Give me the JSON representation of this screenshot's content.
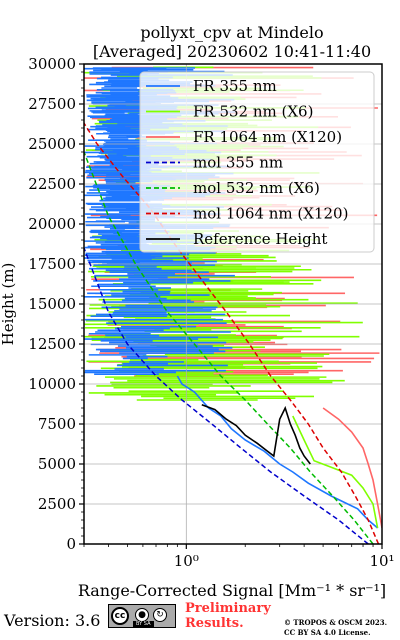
{
  "chart_data": {
    "type": "line",
    "title_line1": "pollyxt_cpv at Mindelo",
    "title_line2": "[Averaged] 20230602 10:41-11:40",
    "ylabel": "Height (m)",
    "xlabel": "Range-Corrected Signal [Mm⁻¹ * sr⁻¹]",
    "xscale": "log",
    "xlim": [
      0.3,
      10
    ],
    "ylim": [
      0,
      30000
    ],
    "xticks": [
      1,
      10
    ],
    "xtick_labels": [
      "10⁰",
      "10¹"
    ],
    "yticks": [
      0,
      2500,
      5000,
      7500,
      10000,
      12500,
      15000,
      17500,
      20000,
      22500,
      25000,
      27500,
      30000
    ],
    "ytick_labels": [
      "0",
      "2500",
      "5000",
      "7500",
      "10000",
      "12500",
      "15000",
      "17500",
      "20000",
      "22500",
      "25000",
      "27500",
      "30000"
    ],
    "grid": true,
    "legend_position": "top-right",
    "colors": {
      "fr355": "#1f77ff",
      "fr532": "#80ff00",
      "fr1064": "#ff6666",
      "mol355": "#0000cc",
      "mol532": "#00bb00",
      "mol1064": "#dd0000",
      "reference": "#000000"
    },
    "legend": [
      {
        "label": "FR 355 nm",
        "color": "#1f77ff",
        "style": "solid"
      },
      {
        "label": "FR 532 nm (X6)",
        "color": "#80ff00",
        "style": "solid"
      },
      {
        "label": "FR 1064 nm (X120)",
        "color": "#ff6666",
        "style": "solid"
      },
      {
        "label": "mol 355 nm",
        "color": "#0000cc",
        "style": "dashed"
      },
      {
        "label": "mol 532 nm (X6)",
        "color": "#00bb00",
        "style": "dashed"
      },
      {
        "label": "mol 1064 nm (X120)",
        "color": "#dd0000",
        "style": "dashed"
      },
      {
        "label": "Reference Height",
        "color": "#000000",
        "style": "solid"
      }
    ],
    "series": [
      {
        "name": "FR 355 nm",
        "x": [
          9.5,
          8.5,
          7.5,
          5.5,
          4.2,
          3.5,
          3.0,
          2.5,
          2.0,
          1.7,
          1.5,
          1.3,
          1.1,
          0.95,
          0.9
        ],
        "y": [
          1000,
          1500,
          2200,
          3000,
          3800,
          4500,
          5000,
          5800,
          6500,
          7200,
          8000,
          8500,
          9500,
          10000,
          10500
        ]
      },
      {
        "name": "FR 532 nm (X6)",
        "x": [
          9.5,
          9.0,
          8.0,
          7.0,
          5.5,
          4.5,
          4.0,
          3.5
        ],
        "y": [
          1000,
          2500,
          3500,
          4300,
          4800,
          5200,
          6500,
          8000
        ]
      },
      {
        "name": "FR 1064 nm (X120)",
        "x": [
          10.0,
          9.5,
          9.0,
          8.5,
          8.0,
          7.0,
          6.0,
          5.0
        ],
        "y": [
          1000,
          2500,
          4000,
          5000,
          6000,
          7000,
          7800,
          8500
        ]
      },
      {
        "name": "mol 355 nm",
        "x": [
          8.5,
          6.0,
          4.0,
          2.7,
          1.9,
          1.35,
          0.95,
          0.7,
          0.5,
          0.4,
          0.3
        ],
        "y": [
          0,
          1500,
          3000,
          4500,
          6000,
          7500,
          9000,
          10500,
          12500,
          14500,
          18500
        ]
      },
      {
        "name": "mol 532 nm (X6)",
        "x": [
          9.0,
          7.2,
          5.6,
          4.3,
          3.4,
          2.6,
          2.0,
          1.5,
          1.1,
          0.8,
          0.55,
          0.4,
          0.3
        ],
        "y": [
          0,
          1500,
          3000,
          4500,
          6000,
          7500,
          9000,
          10500,
          12500,
          14500,
          17500,
          20500,
          24500
        ]
      },
      {
        "name": "mol 1064 nm (X120)",
        "x": [
          9.6,
          8.5,
          7.3,
          6.2,
          5.0,
          4.2,
          3.4,
          2.7,
          2.1,
          1.6,
          1.2,
          0.9,
          0.65,
          0.47,
          0.35,
          0.3
        ],
        "y": [
          0,
          1500,
          3000,
          4500,
          6000,
          7500,
          9000,
          10500,
          12500,
          14500,
          16500,
          18500,
          21000,
          23000,
          25000,
          26300
        ]
      },
      {
        "name": "Reference Height",
        "x": [
          1.2,
          1.4,
          1.6,
          1.8,
          2.0,
          2.3,
          2.6,
          2.8,
          3.0,
          3.2,
          3.4,
          3.6,
          3.8,
          4.0,
          4.3
        ],
        "y": [
          8700,
          8400,
          7800,
          7400,
          6800,
          6300,
          5800,
          5500,
          7800,
          8500,
          7500,
          6800,
          6000,
          5500,
          5000
        ]
      }
    ]
  },
  "footer": {
    "version_label": "Version: 3.6",
    "cc_badge": "BY SA",
    "preliminary_line1": "Preliminary",
    "preliminary_line2": "Results.",
    "copyright_line1": "© TROPOS & OSCM 2023.",
    "copyright_line2": "CC BY SA 4.0 License."
  }
}
